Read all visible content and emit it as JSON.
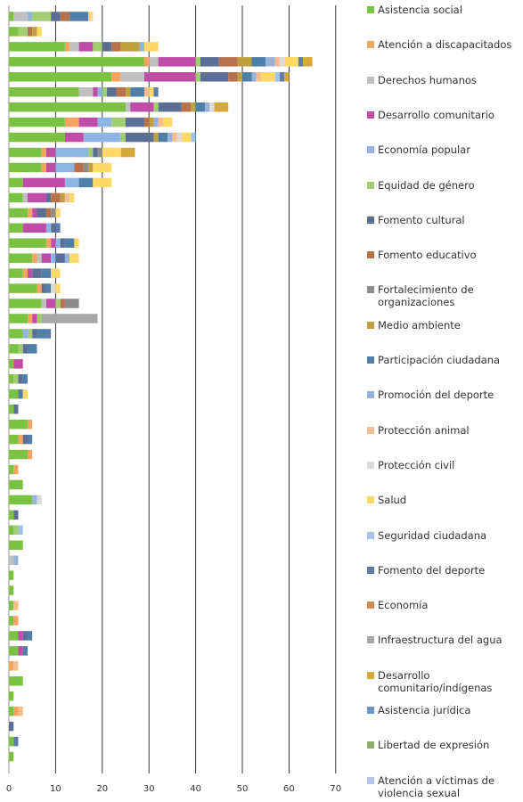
{
  "chart_data": {
    "type": "bar",
    "orientation": "horizontal",
    "stacked": true,
    "xlim": [
      0,
      70
    ],
    "x_ticks": [
      "0",
      "10",
      "20",
      "30",
      "40",
      "50",
      "60",
      "70"
    ],
    "grid": "vertical",
    "legend_position": "right",
    "row_count": 50,
    "series": [
      {
        "name": "Asistencia social",
        "color": "#7CC242",
        "values": [
          1,
          2,
          12,
          29,
          22,
          15,
          25,
          12,
          12,
          7,
          7,
          3,
          3,
          4,
          3,
          8,
          5,
          3,
          6,
          7,
          4,
          3,
          2,
          1,
          1,
          2,
          1,
          4,
          2,
          4,
          1,
          3,
          5,
          1,
          1,
          3,
          0,
          1,
          1,
          1,
          1,
          2,
          2,
          0,
          3,
          1,
          1,
          0,
          1,
          1
        ]
      },
      {
        "name": "Atención a discapacitados",
        "color": "#F4A460",
        "values": [
          0,
          0,
          1,
          1,
          2,
          0,
          0,
          3,
          0,
          1,
          1,
          0,
          0,
          1,
          0,
          1,
          1,
          1,
          1,
          0,
          1,
          0,
          0,
          0,
          0,
          0,
          0,
          1,
          1,
          1,
          1,
          0,
          0,
          0,
          0,
          0,
          0,
          0,
          0,
          0,
          1,
          0,
          0,
          1,
          0,
          0,
          1,
          0,
          0,
          0
        ]
      },
      {
        "name": "Derechos humanos",
        "color": "#BFBFBF",
        "values": [
          3,
          0,
          2,
          2,
          5,
          3,
          1,
          0,
          0,
          0,
          0,
          0,
          1,
          0,
          0,
          0,
          1,
          0,
          0,
          1,
          0,
          0,
          0,
          0,
          0,
          0,
          0,
          0,
          0,
          0,
          0,
          0,
          0,
          0,
          0,
          0,
          1,
          0,
          0,
          0,
          0,
          0,
          0,
          0,
          0,
          0,
          0,
          0,
          0,
          0
        ]
      },
      {
        "name": "Desarrollo comunitario",
        "color": "#BF4DA8",
        "values": [
          0,
          0,
          3,
          8,
          11,
          1,
          5,
          4,
          4,
          2,
          2,
          9,
          4,
          1,
          5,
          1,
          2,
          1,
          0,
          2,
          1,
          0,
          0,
          2,
          0,
          0,
          0,
          0,
          0,
          0,
          0,
          0,
          0,
          0,
          0,
          0,
          0,
          0,
          0,
          0,
          0,
          1,
          1,
          0,
          0,
          0,
          0,
          0,
          0,
          0
        ]
      },
      {
        "name": "Economía popular",
        "color": "#8EB4E3",
        "values": [
          1,
          0,
          0,
          0,
          0,
          1,
          0,
          3,
          8,
          7,
          4,
          3,
          0,
          0,
          1,
          1,
          1,
          0,
          0,
          0,
          0,
          1,
          0,
          0,
          0,
          0,
          0,
          0,
          0,
          0,
          0,
          0,
          0,
          0,
          0,
          0,
          0,
          0,
          0,
          0,
          0,
          0,
          0,
          0,
          0,
          0,
          0,
          0,
          0,
          0
        ]
      },
      {
        "name": "Equidad de género",
        "color": "#A0CE6E",
        "values": [
          4,
          2,
          2,
          1,
          1,
          1,
          1,
          3,
          1,
          1,
          0,
          0,
          0,
          0,
          0,
          0,
          0,
          0,
          0,
          1,
          1,
          1,
          1,
          0,
          1,
          0,
          0,
          0,
          0,
          0,
          0,
          0,
          0,
          0,
          1,
          0,
          0,
          0,
          0,
          0,
          0,
          0,
          0,
          0,
          0,
          0,
          0,
          0,
          0,
          0
        ]
      },
      {
        "name": "Fomento cultural",
        "color": "#5B6F95",
        "values": [
          2,
          0,
          2,
          4,
          6,
          2,
          5,
          4,
          6,
          1,
          0,
          0,
          1,
          2,
          1,
          1,
          2,
          2,
          1,
          0,
          0,
          1,
          1,
          0,
          1,
          0,
          1,
          0,
          1,
          0,
          0,
          0,
          0,
          1,
          0,
          0,
          0,
          0,
          0,
          0,
          0,
          1,
          0,
          0,
          0,
          0,
          0,
          1,
          0,
          0
        ]
      },
      {
        "name": "Fomento educativo",
        "color": "#B8714A",
        "values": [
          2,
          1,
          2,
          4,
          2,
          2,
          2,
          1,
          0,
          0,
          2,
          0,
          2,
          1,
          0,
          0,
          0,
          0,
          0,
          1,
          0,
          0,
          0,
          0,
          0,
          0,
          0,
          0,
          0,
          0,
          0,
          0,
          0,
          0,
          0,
          0,
          0,
          0,
          0,
          0,
          0,
          0,
          0,
          0,
          0,
          0,
          0,
          0,
          0,
          0
        ]
      },
      {
        "name": "Fortalecimiento de organizaciones",
        "color": "#8C8C8C",
        "values": [
          0,
          0,
          0,
          0,
          0,
          0,
          0,
          0,
          0,
          1,
          1,
          0,
          0,
          1,
          0,
          0,
          0,
          0,
          0,
          3,
          0,
          0,
          0,
          0,
          0,
          0,
          0,
          0,
          0,
          0,
          0,
          0,
          0,
          0,
          0,
          0,
          0,
          0,
          0,
          0,
          0,
          0,
          0,
          0,
          0,
          0,
          0,
          0,
          0,
          0
        ]
      },
      {
        "name": "Medio ambiente",
        "color": "#BFA040",
        "values": [
          0,
          1,
          4,
          3,
          1,
          1,
          1,
          1,
          1,
          0,
          1,
          0,
          1,
          0,
          0,
          0,
          0,
          0,
          0,
          0,
          0,
          0,
          0,
          0,
          0,
          0,
          0,
          0,
          0,
          0,
          0,
          0,
          0,
          0,
          0,
          0,
          0,
          0,
          0,
          0,
          0,
          0,
          0,
          0,
          0,
          0,
          0,
          0,
          0,
          0
        ]
      },
      {
        "name": "Participación ciudadana",
        "color": "#4F7FA6",
        "values": [
          4,
          0,
          0,
          3,
          2,
          3,
          2,
          0,
          2,
          0,
          0,
          3,
          0,
          0,
          0,
          2,
          0,
          2,
          1,
          0,
          0,
          2,
          2,
          0,
          1,
          1,
          0,
          0,
          1,
          0,
          0,
          0,
          0,
          0,
          0,
          0,
          0,
          0,
          0,
          0,
          0,
          1,
          1,
          0,
          0,
          0,
          0,
          0,
          0,
          0
        ]
      },
      {
        "name": "Promoción del deporte",
        "color": "#95B3D7",
        "values": [
          0,
          0,
          1,
          2,
          1,
          0,
          1,
          1,
          1,
          0,
          0,
          0,
          0,
          0,
          0,
          0,
          1,
          0,
          0,
          0,
          0,
          0,
          0,
          0,
          0,
          0,
          0,
          0,
          0,
          0,
          0,
          0,
          1,
          0,
          0,
          0,
          1,
          0,
          0,
          0,
          0,
          0,
          0,
          0,
          0,
          0,
          0,
          0,
          0,
          0
        ]
      },
      {
        "name": "Protección animal",
        "color": "#F7BD8C",
        "values": [
          0,
          0,
          0,
          1,
          1,
          1,
          0,
          1,
          1,
          0,
          0,
          0,
          1,
          0,
          0,
          0,
          0,
          0,
          0,
          0,
          0,
          0,
          0,
          0,
          0,
          0,
          0,
          0,
          0,
          0,
          0,
          0,
          0,
          0,
          0,
          0,
          0,
          0,
          0,
          1,
          0,
          0,
          0,
          1,
          0,
          0,
          1,
          0,
          0,
          0
        ]
      },
      {
        "name": "Protección civil",
        "color": "#D9D9D9",
        "values": [
          0,
          0,
          0,
          1,
          0,
          0,
          1,
          0,
          1,
          0,
          0,
          0,
          0,
          0,
          0,
          0,
          0,
          0,
          1,
          0,
          0,
          0,
          0,
          0,
          0,
          0,
          0,
          0,
          0,
          0,
          0,
          0,
          1,
          0,
          0,
          0,
          0,
          0,
          0,
          0,
          0,
          0,
          0,
          0,
          0,
          0,
          0,
          0,
          0,
          0
        ]
      },
      {
        "name": "Salud",
        "color": "#FFD966",
        "values": [
          1,
          1,
          3,
          3,
          3,
          1,
          0,
          2,
          2,
          4,
          4,
          4,
          1,
          1,
          0,
          1,
          2,
          2,
          1,
          0,
          0,
          0,
          0,
          0,
          0,
          1,
          0,
          0,
          0,
          0,
          0,
          0,
          0,
          0,
          0,
          0,
          0,
          0,
          0,
          0,
          0,
          0,
          0,
          0,
          0,
          0,
          0,
          0,
          0,
          0
        ]
      },
      {
        "name": "Seguridad ciudadana",
        "color": "#9DC3E6",
        "values": [
          0,
          0,
          0,
          0,
          1,
          0,
          0,
          0,
          1,
          0,
          0,
          0,
          0,
          0,
          0,
          0,
          0,
          0,
          0,
          0,
          0,
          0,
          0,
          0,
          0,
          0,
          0,
          0,
          0,
          0,
          0,
          0,
          0,
          0,
          1,
          0,
          0,
          0,
          0,
          0,
          0,
          0,
          0,
          0,
          0,
          0,
          0,
          0,
          0,
          0
        ]
      },
      {
        "name": "Fomento del deporte",
        "color": "#5E7CA8",
        "values": [
          0,
          0,
          0,
          1,
          1,
          1,
          0,
          0,
          0,
          0,
          0,
          0,
          0,
          0,
          1,
          0,
          0,
          0,
          0,
          0,
          0,
          1,
          0,
          0,
          0,
          0,
          0,
          0,
          0,
          0,
          0,
          0,
          0,
          0,
          0,
          0,
          0,
          0,
          0,
          0,
          0,
          0,
          0,
          0,
          0,
          0,
          0,
          0,
          1,
          0
        ]
      },
      {
        "name": "Economía",
        "color": "#D48A56",
        "values": [
          0,
          0,
          0,
          0,
          0,
          0,
          0,
          0,
          0,
          0,
          0,
          0,
          0,
          0,
          0,
          0,
          0,
          0,
          0,
          0,
          0,
          0,
          0,
          0,
          0,
          0,
          0,
          0,
          0,
          0,
          0,
          0,
          0,
          0,
          0,
          0,
          0,
          0,
          0,
          0,
          0,
          0,
          0,
          0,
          0,
          0,
          0,
          0,
          0,
          0
        ]
      },
      {
        "name": "Infraestructura del agua",
        "color": "#A6A6A6",
        "values": [
          0,
          0,
          0,
          0,
          0,
          0,
          0,
          0,
          0,
          0,
          0,
          0,
          0,
          0,
          0,
          0,
          0,
          0,
          0,
          0,
          12,
          0,
          0,
          0,
          0,
          0,
          0,
          0,
          0,
          0,
          0,
          0,
          0,
          0,
          0,
          0,
          0,
          0,
          0,
          0,
          0,
          0,
          0,
          0,
          0,
          0,
          0,
          0,
          0,
          0
        ]
      },
      {
        "name": "Desarrollo comunitario/indígenas",
        "color": "#D4A93A",
        "values": [
          0,
          0,
          0,
          2,
          1,
          0,
          3,
          0,
          0,
          3,
          0,
          0,
          0,
          0,
          0,
          0,
          0,
          0,
          0,
          0,
          0,
          0,
          0,
          0,
          0,
          0,
          0,
          0,
          0,
          0,
          0,
          0,
          0,
          0,
          0,
          0,
          0,
          0,
          0,
          0,
          0,
          0,
          0,
          0,
          0,
          0,
          0,
          0,
          0,
          0
        ]
      },
      {
        "name": "Asistencia jurídica",
        "color": "#6C97C4",
        "values": [
          0,
          0,
          0,
          0,
          0,
          0,
          0,
          0,
          0,
          0,
          0,
          0,
          0,
          0,
          0,
          0,
          0,
          0,
          0,
          0,
          0,
          0,
          0,
          0,
          0,
          0,
          0,
          0,
          0,
          0,
          0,
          0,
          0,
          0,
          0,
          0,
          0,
          0,
          0,
          0,
          0,
          0,
          0,
          0,
          0,
          0,
          0,
          0,
          0,
          0
        ]
      },
      {
        "name": "Libertad de expresión",
        "color": "#8FAE6E",
        "values": [
          0,
          0,
          0,
          0,
          0,
          0,
          0,
          0,
          0,
          0,
          0,
          0,
          0,
          0,
          0,
          0,
          0,
          0,
          0,
          0,
          0,
          0,
          0,
          0,
          0,
          0,
          0,
          0,
          0,
          0,
          0,
          0,
          0,
          0,
          0,
          0,
          0,
          0,
          0,
          0,
          0,
          0,
          0,
          0,
          0,
          0,
          0,
          0,
          0,
          0
        ]
      },
      {
        "name": "Atención a víctimas de violencia sexual",
        "color": "#B4C7E7",
        "values": [
          0,
          0,
          0,
          0,
          0,
          0,
          0,
          0,
          0,
          0,
          0,
          0,
          0,
          0,
          0,
          0,
          0,
          0,
          0,
          0,
          0,
          0,
          0,
          0,
          0,
          0,
          0,
          0,
          0,
          0,
          0,
          0,
          0,
          0,
          0,
          0,
          0,
          0,
          0,
          0,
          0,
          0,
          0,
          0,
          0,
          0,
          0,
          0,
          0,
          0
        ]
      }
    ]
  }
}
